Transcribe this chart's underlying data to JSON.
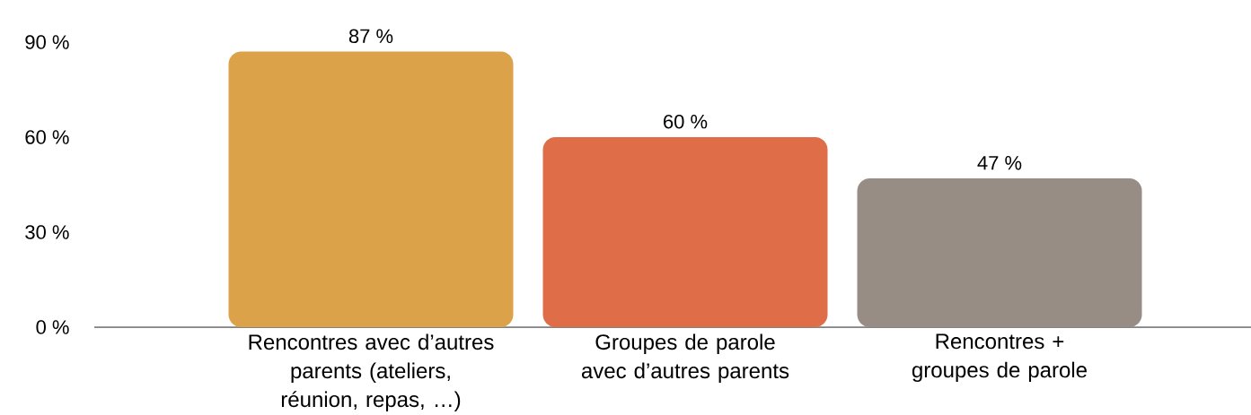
{
  "chart_data": {
    "type": "bar",
    "categories": [
      "Rencontres avec d’autres parents (ateliers, réunion, repas, …)",
      "Groupes de parole avec d’autres parents",
      "Rencontres + groupes de parole"
    ],
    "values": [
      87,
      60,
      47
    ],
    "colors": [
      "#dca24a",
      "#de6d48",
      "#978d85"
    ],
    "value_labels": [
      "87 %",
      "60 %",
      "47 %"
    ],
    "ylim": [
      0,
      90
    ],
    "yticks": [
      {
        "value": 0,
        "label": "0 %"
      },
      {
        "value": 30,
        "label": "30 %"
      },
      {
        "value": 60,
        "label": "60 %"
      },
      {
        "value": 90,
        "label": "90 %"
      }
    ]
  }
}
